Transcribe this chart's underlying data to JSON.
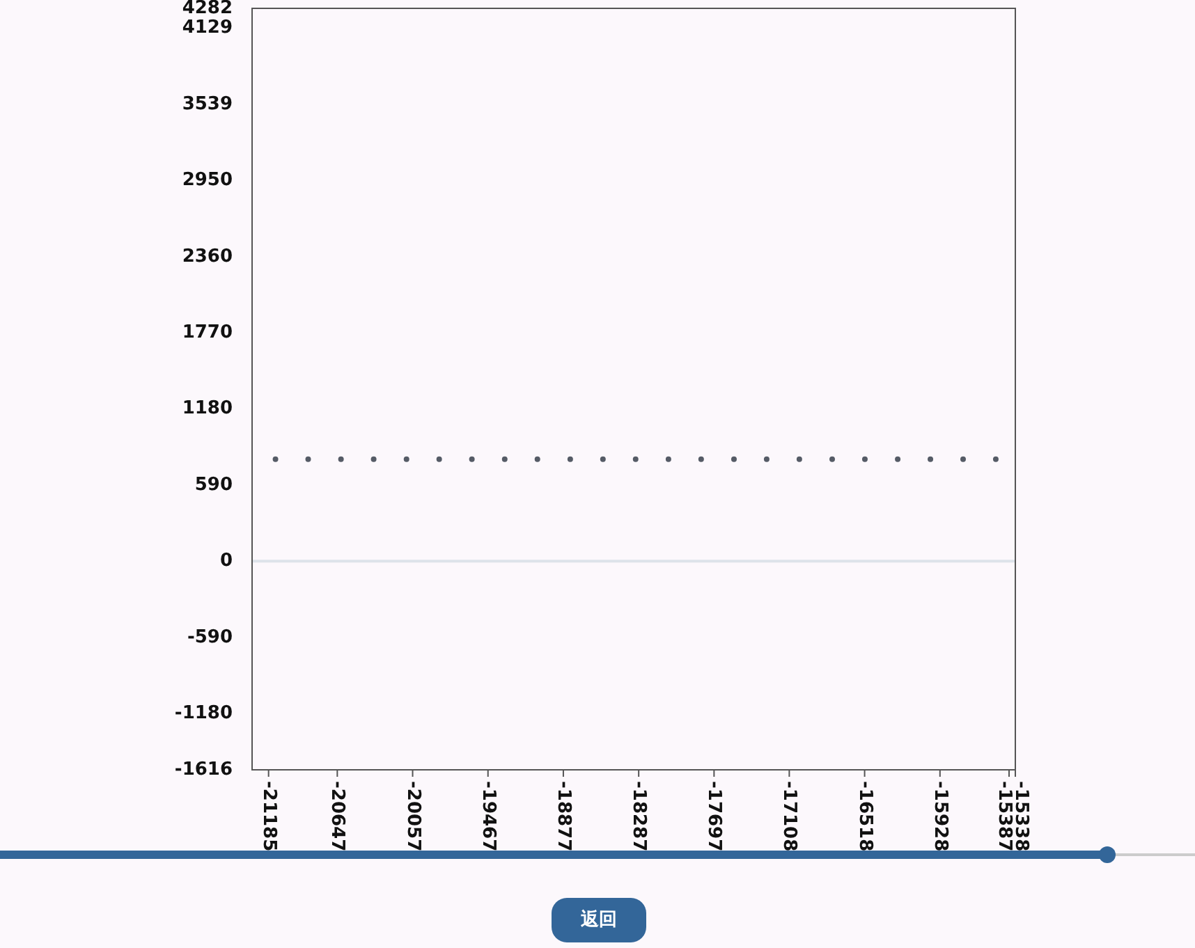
{
  "chart_data": {
    "type": "scatter",
    "xlim": [
      -21314,
      -15338
    ],
    "ylim": [
      -1616,
      4282
    ],
    "xticks": [
      -21185,
      -20647,
      -20057,
      -19467,
      -18877,
      -18287,
      -17697,
      -17108,
      -16518,
      -15928,
      -15387,
      -15338
    ],
    "yticks": [
      -1616,
      -1180,
      -590,
      0,
      590,
      1180,
      1770,
      2360,
      2950,
      3539,
      4129,
      4282
    ],
    "x": [
      -21131,
      -20875,
      -20618,
      -20362,
      -20105,
      -19849,
      -19593,
      -19336,
      -19080,
      -18823,
      -18567,
      -18311,
      -18054,
      -17798,
      -17541,
      -17285,
      -17029,
      -16772,
      -16516,
      -16259,
      -16003,
      -15747,
      -15491
    ],
    "series": [
      {
        "color": "#555b66",
        "values": [
          790,
          790,
          790,
          790,
          790,
          790,
          790,
          790,
          790,
          790,
          790,
          790,
          790,
          790,
          790,
          790,
          790,
          790,
          790,
          790,
          790,
          790,
          790
        ]
      }
    ],
    "marker": "circle",
    "grid": false,
    "ref_lines": [
      {
        "axis": "y",
        "value": 0,
        "color": "#dde3ea"
      }
    ],
    "annotations": [
      "返回"
    ]
  }
}
